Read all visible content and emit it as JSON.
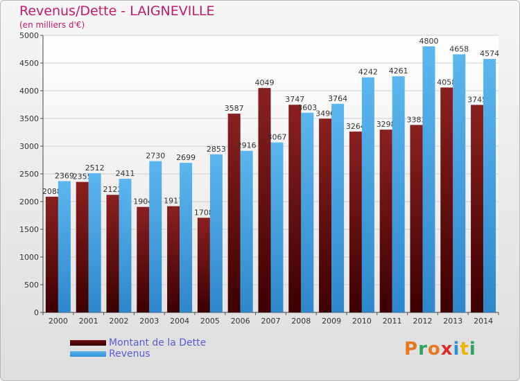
{
  "title": "Revenus/Dette - LAIGNEVILLE",
  "subtitle": "(en milliers d'€)",
  "logo": {
    "text": "Proxiti",
    "colors": [
      "#e87722",
      "#2ca25f",
      "#e87722",
      "#d62f2f",
      "#2b8fd6",
      "#f0b400",
      "#2ca25f"
    ]
  },
  "legend": {
    "dette_label": "Montant de la Dette",
    "revenus_label": "Revenus"
  },
  "colors": {
    "dette": "#7b1616",
    "revenus": "#4aa6e6",
    "title": "#c21a6b"
  },
  "chart_data": {
    "type": "bar",
    "title": "Revenus/Dette - LAIGNEVILLE",
    "subtitle": "(en milliers d'€)",
    "categories": [
      "2000",
      "2001",
      "2002",
      "2003",
      "2004",
      "2005",
      "2006",
      "2007",
      "2008",
      "2009",
      "2010",
      "2011",
      "2012",
      "2013",
      "2014"
    ],
    "series": [
      {
        "name": "Montant de la Dette",
        "values": [
          2088,
          2355,
          2122,
          1904,
          1917,
          1708,
          3587,
          4049,
          3747,
          3496,
          3264,
          3298,
          3383,
          4058,
          3745
        ],
        "labels": [
          "2088",
          "2355",
          "2122",
          "1904",
          "1917",
          "1708",
          "3587",
          "4049",
          "3747",
          "3496",
          "3264",
          "3298",
          "3383",
          "4058",
          "3745"
        ]
      },
      {
        "name": "Revenus",
        "values": [
          2369,
          2512,
          2411,
          2730,
          2699,
          2853,
          2916,
          3067,
          3603,
          3764,
          4242,
          4261,
          4800,
          4658,
          4574
        ],
        "labels": [
          "2369",
          "2512",
          "2411",
          "2730",
          "2699",
          "2853",
          "2916",
          "3067",
          "3603",
          "3764",
          "4242",
          "4261",
          "4800",
          "4658",
          "4574"
        ]
      }
    ],
    "yticks": [
      0,
      500,
      1000,
      1500,
      2000,
      2500,
      3000,
      3500,
      4000,
      4500,
      5000
    ],
    "ylim": [
      0,
      5000
    ],
    "grid": true,
    "legend_position": "bottom-left"
  }
}
